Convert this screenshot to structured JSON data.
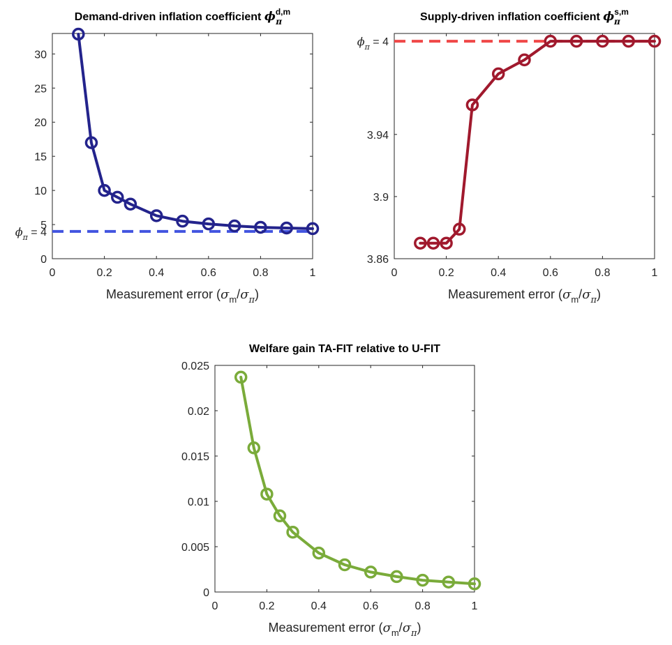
{
  "chart_data": [
    {
      "type": "line",
      "title": "Demand-driven inflation coefficient ",
      "title_symbol": "ϕ",
      "title_sub": "π",
      "title_sup": "d,m",
      "xlabel": "Measurement error (",
      "xlabel_sym1": "σ",
      "xlabel_sub1": "m",
      "xlabel_mid": "/",
      "xlabel_sym2": "σ",
      "xlabel_sub2": "π",
      "xlabel_end": ")",
      "xlim": [
        0,
        1
      ],
      "ylim": [
        0,
        33
      ],
      "x_ticks": [
        "0",
        "0.2",
        "0.4",
        "0.6",
        "0.8",
        "1"
      ],
      "y_ticks": [
        "0",
        "5",
        "10",
        "15",
        "20",
        "25",
        "30"
      ],
      "x_tick_values": [
        0,
        0.2,
        0.4,
        0.6,
        0.8,
        1
      ],
      "y_tick_values": [
        0,
        5,
        10,
        15,
        20,
        25,
        30
      ],
      "ref_label": "ϕ",
      "ref_label_sub": "π",
      "ref_label_end": " = 4",
      "ref_value": 4,
      "ref_color": "#4254e0",
      "series": [
        {
          "color": "#23238c",
          "x": [
            0.1,
            0.15,
            0.2,
            0.25,
            0.3,
            0.4,
            0.5,
            0.6,
            0.7,
            0.8,
            0.9,
            1.0
          ],
          "y": [
            32.9,
            17.0,
            10.0,
            9.0,
            8.0,
            6.3,
            5.5,
            5.1,
            4.8,
            4.6,
            4.5,
            4.4
          ]
        }
      ],
      "grid": false,
      "legend": "none"
    },
    {
      "type": "line",
      "title": "Supply-driven inflation coefficient ",
      "title_symbol": "ϕ",
      "title_sub": "π",
      "title_sup": "s,m",
      "xlabel": "Measurement error (",
      "xlabel_sym1": "σ",
      "xlabel_sub1": "m",
      "xlabel_mid": "/",
      "xlabel_sym2": "σ",
      "xlabel_sub2": "π",
      "xlabel_end": ")",
      "xlim": [
        0,
        1
      ],
      "ylim": [
        3.86,
        4.005
      ],
      "x_ticks": [
        "0",
        "0.2",
        "0.4",
        "0.6",
        "0.8",
        "1"
      ],
      "y_ticks": [
        "3.86",
        "3.9",
        "3.94"
      ],
      "x_tick_values": [
        0,
        0.2,
        0.4,
        0.6,
        0.8,
        1
      ],
      "y_tick_values": [
        3.86,
        3.9,
        3.94
      ],
      "ref_label": "ϕ",
      "ref_label_sub": "π",
      "ref_label_end": " = 4",
      "ref_value": 4,
      "ref_color": "#f04848",
      "series": [
        {
          "color": "#a0192d",
          "x": [
            0.1,
            0.15,
            0.2,
            0.25,
            0.3,
            0.4,
            0.5,
            0.6,
            0.7,
            0.8,
            0.9,
            1.0
          ],
          "y": [
            3.87,
            3.87,
            3.87,
            3.879,
            3.959,
            3.979,
            3.988,
            4.0,
            4.0,
            4.0,
            4.0,
            4.0
          ]
        }
      ],
      "grid": false,
      "legend": "none"
    },
    {
      "type": "line",
      "title": "Welfare gain TA-FIT relative to U-FIT",
      "title_symbol": "",
      "title_sub": "",
      "title_sup": "",
      "xlabel": "Measurement error (",
      "xlabel_sym1": "σ",
      "xlabel_sub1": "m",
      "xlabel_mid": "/",
      "xlabel_sym2": "σ",
      "xlabel_sub2": "π",
      "xlabel_end": ")",
      "xlim": [
        0,
        1
      ],
      "ylim": [
        0,
        0.025
      ],
      "x_ticks": [
        "0",
        "0.2",
        "0.4",
        "0.6",
        "0.8",
        "1"
      ],
      "y_ticks": [
        "0",
        "0.005",
        "0.01",
        "0.015",
        "0.02",
        "0.025"
      ],
      "x_tick_values": [
        0,
        0.2,
        0.4,
        0.6,
        0.8,
        1
      ],
      "y_tick_values": [
        0,
        0.005,
        0.01,
        0.015,
        0.02,
        0.025
      ],
      "series": [
        {
          "color": "#7aab3a",
          "x": [
            0.1,
            0.15,
            0.2,
            0.25,
            0.3,
            0.4,
            0.5,
            0.6,
            0.7,
            0.8,
            0.9,
            1.0
          ],
          "y": [
            0.0237,
            0.0159,
            0.0108,
            0.0084,
            0.0066,
            0.0043,
            0.003,
            0.0022,
            0.0017,
            0.0013,
            0.0011,
            0.0009
          ]
        }
      ],
      "grid": false,
      "legend": "none"
    }
  ]
}
